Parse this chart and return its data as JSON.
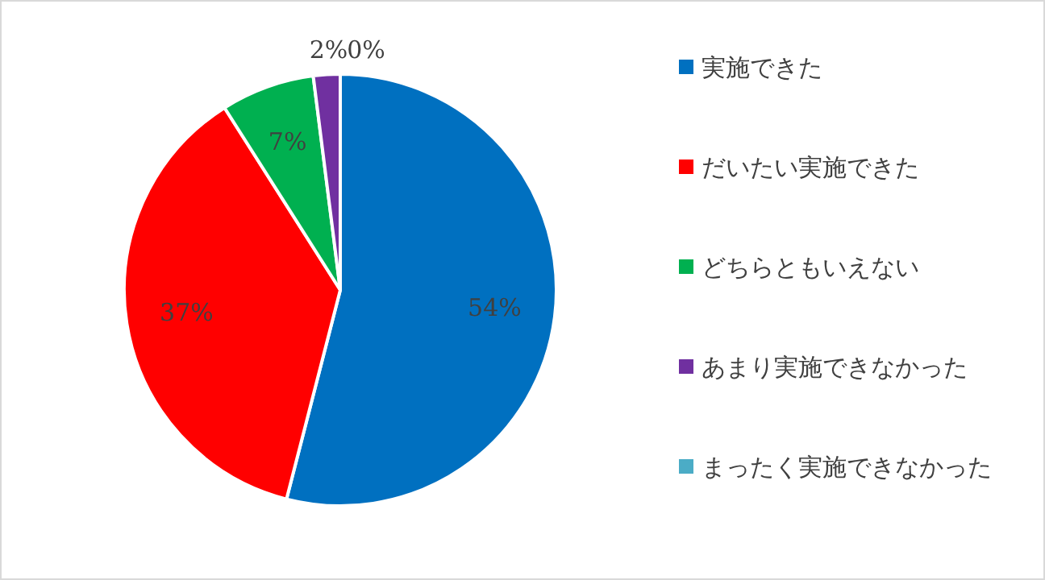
{
  "chart_data": {
    "type": "pie",
    "categories": [
      "実施できた",
      "だいたい実施できた",
      "どちらともいえない",
      "あまり実施できなかった",
      "まったく実施できなかった"
    ],
    "values": [
      54,
      37,
      7,
      2,
      0
    ],
    "colors": [
      "#0070c0",
      "#ff0000",
      "#00b050",
      "#7030a0",
      "#4bacc6"
    ],
    "value_labels": [
      "54%",
      "37%",
      "7%",
      "2%",
      "0%"
    ],
    "legend": "right"
  }
}
